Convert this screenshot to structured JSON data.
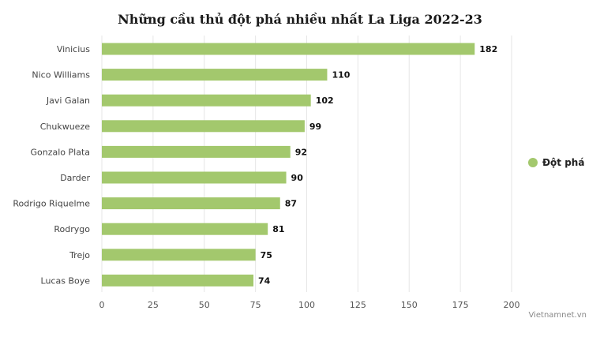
{
  "chart_data": {
    "type": "bar",
    "orientation": "horizontal",
    "title": "Những cầu thủ đột phá nhiều nhất La Liga 2022-23",
    "categories": [
      "Vinicius",
      "Nico Williams",
      "Javi Galan",
      "Chukwueze",
      "Gonzalo Plata",
      "Darder",
      "Rodrigo Riquelme",
      "Rodrygo",
      "Trejo",
      "Lucas Boye"
    ],
    "series": [
      {
        "name": "Đột phá",
        "values": [
          182,
          110,
          102,
          99,
          92,
          90,
          87,
          81,
          75,
          74
        ],
        "color": "#a3c86d"
      }
    ],
    "x_ticks": [
      0,
      25,
      50,
      75,
      100,
      125,
      150,
      175,
      200
    ],
    "xlim": [
      0,
      200
    ],
    "grid": true,
    "legend_position": "right",
    "data_labels": true
  },
  "credit": "Vietnamnet.vn",
  "colors": {
    "bar": "#a3c86d",
    "grid": "#e6e6e6"
  }
}
